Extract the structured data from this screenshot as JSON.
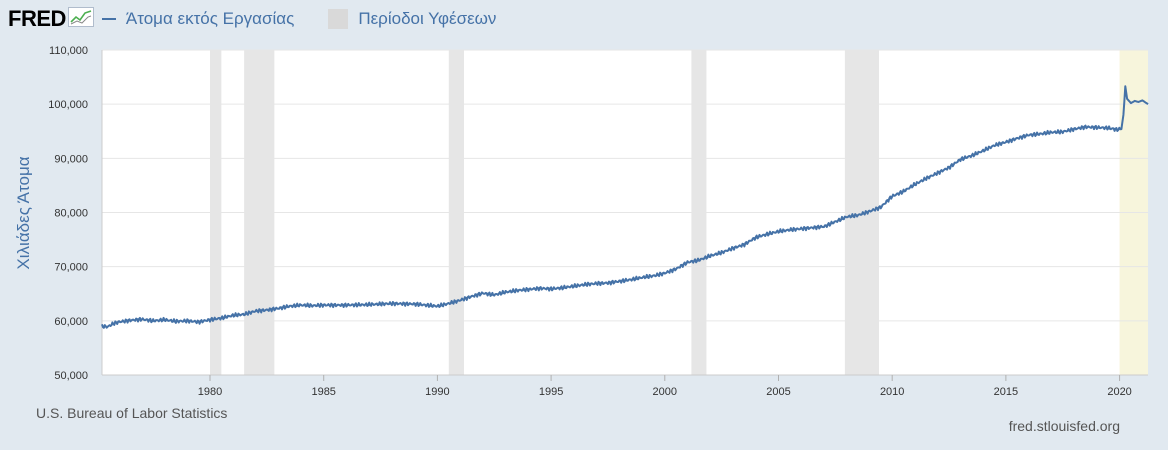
{
  "header": {
    "logo_text": "FRED",
    "series_label": "Άτομα εκτός Εργασίας",
    "recession_label": "Περίοδοι Υφέσεων"
  },
  "source_left": "U.S. Bureau of Labor Statistics",
  "source_right": "fred.stlouisfed.org",
  "colors": {
    "line": "#4572a7",
    "recession": "#e6e6e6",
    "highlight": "#f7f5dc",
    "background": "#e1e9f0",
    "plot_background": "#ffffff"
  },
  "chart_data": {
    "type": "line",
    "title": "",
    "xlabel": "",
    "ylabel": "Χιλιάδες Άτομα",
    "xlim": [
      1975.25,
      2021.25
    ],
    "ylim": [
      50000,
      110000
    ],
    "yticks": [
      {
        "value": 50000,
        "label": "50,000"
      },
      {
        "value": 60000,
        "label": "60,000"
      },
      {
        "value": 70000,
        "label": "70,000"
      },
      {
        "value": 80000,
        "label": "80,000"
      },
      {
        "value": 90000,
        "label": "90,000"
      },
      {
        "value": 100000,
        "label": "100,000"
      },
      {
        "value": 110000,
        "label": "110,000"
      }
    ],
    "xticks": [
      {
        "value": 1980,
        "label": "1980"
      },
      {
        "value": 1985,
        "label": "1985"
      },
      {
        "value": 1990,
        "label": "1990"
      },
      {
        "value": 1995,
        "label": "1995"
      },
      {
        "value": 2000,
        "label": "2000"
      },
      {
        "value": 2005,
        "label": "2005"
      },
      {
        "value": 2010,
        "label": "2010"
      },
      {
        "value": 2015,
        "label": "2015"
      },
      {
        "value": 2020,
        "label": "2020"
      }
    ],
    "recessions": [
      [
        1980.0,
        1980.5
      ],
      [
        1981.5,
        1982.83
      ],
      [
        1990.5,
        1991.17
      ],
      [
        2001.17,
        2001.83
      ],
      [
        2007.92,
        2009.42
      ]
    ],
    "highlight_range": [
      2020.0,
      2021.25
    ],
    "grid": true,
    "series": [
      {
        "name": "Άτομα εκτός Εργασίας",
        "x": [
          1975.25,
          1975.5,
          1975.75,
          1976,
          1976.5,
          1977,
          1977.5,
          1978,
          1978.5,
          1979,
          1979.5,
          1980,
          1980.5,
          1981,
          1981.5,
          1982,
          1982.5,
          1983,
          1983.5,
          1984,
          1984.5,
          1985,
          1986,
          1987,
          1988,
          1989,
          1990,
          1990.5,
          1991,
          1991.5,
          1992,
          1992.5,
          1993,
          1993.5,
          1994,
          1994.5,
          1995,
          1995.5,
          1996,
          1996.5,
          1997,
          1997.5,
          1998,
          1998.5,
          1999,
          1999.5,
          2000,
          2000.5,
          2001,
          2001.5,
          2002,
          2002.5,
          2003,
          2003.5,
          2004,
          2004.5,
          2005,
          2005.5,
          2006,
          2006.5,
          2007,
          2007.5,
          2008,
          2008.5,
          2009,
          2009.5,
          2010,
          2010.5,
          2011,
          2011.5,
          2012,
          2012.5,
          2013,
          2013.5,
          2014,
          2014.5,
          2015,
          2015.5,
          2016,
          2016.5,
          2017,
          2017.5,
          2018,
          2018.5,
          2019,
          2019.5,
          2019.9,
          2020.08,
          2020.17,
          2020.25,
          2020.33,
          2020.5,
          2020.67,
          2020.83,
          2021,
          2021.25
        ],
        "values": [
          59000,
          58900,
          59500,
          59800,
          60100,
          60300,
          60000,
          60200,
          59900,
          60000,
          59800,
          60200,
          60500,
          61000,
          61200,
          61800,
          62000,
          62300,
          62700,
          62900,
          62800,
          62900,
          62900,
          63000,
          63200,
          63100,
          62700,
          63200,
          63800,
          64500,
          65100,
          64800,
          65300,
          65600,
          65800,
          66000,
          65900,
          66100,
          66400,
          66700,
          66900,
          67000,
          67300,
          67600,
          68000,
          68300,
          68800,
          69600,
          70800,
          71200,
          72000,
          72600,
          73400,
          74100,
          75400,
          76000,
          76500,
          76800,
          77000,
          77200,
          77400,
          78300,
          79200,
          79500,
          80200,
          81000,
          83000,
          83900,
          85200,
          86300,
          87300,
          88300,
          89800,
          90500,
          91400,
          92400,
          93000,
          93700,
          94300,
          94500,
          94800,
          94900,
          95400,
          95800,
          95700,
          95600,
          95300,
          95400,
          98000,
          103300,
          101000,
          100200,
          100600,
          100400,
          100700,
          100000
        ]
      }
    ]
  }
}
